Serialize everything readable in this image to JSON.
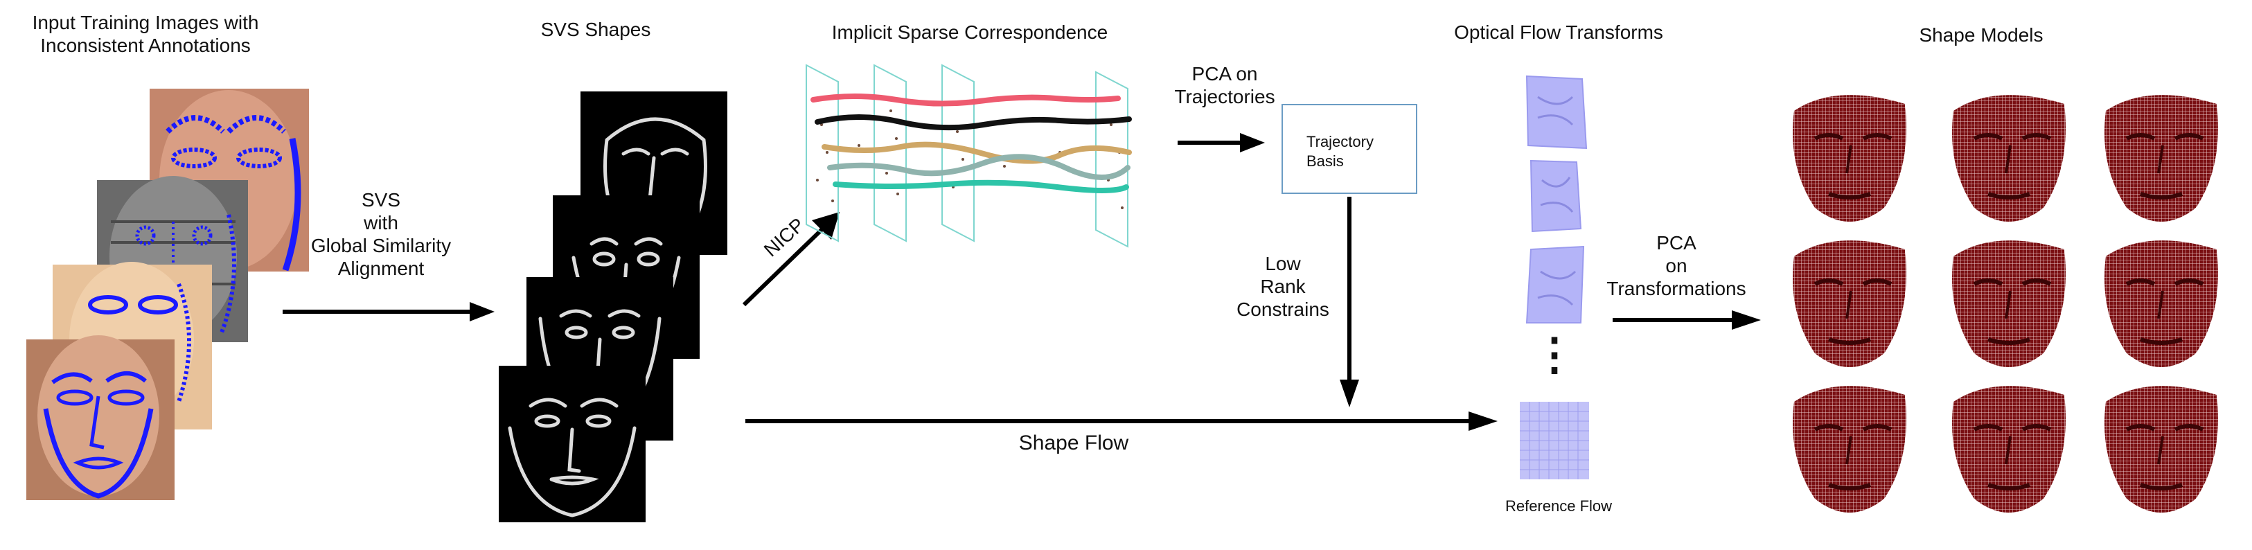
{
  "titles": {
    "input_line1": "Input Training Images with",
    "input_line2": "Inconsistent Annotations",
    "svs_shapes": "SVS Shapes",
    "isc": "Implicit Sparse Correspondence",
    "optical_flow": "Optical Flow Transforms",
    "shape_models": "Shape Models"
  },
  "arrows": {
    "svs_l1": "SVS",
    "svs_l2": "with",
    "svs_l3": "Global Similarity",
    "svs_l4": "Alignment",
    "nicp": "NICP",
    "pca_traj_l1": "PCA on",
    "pca_traj_l2": "Trajectories",
    "low_rank_l1": "Low",
    "low_rank_l2": "Rank",
    "low_rank_l3": "Constrains",
    "shape_flow": "Shape Flow",
    "pca_trans_l1": "PCA",
    "pca_trans_l2": "on",
    "pca_trans_l3": "Transformations"
  },
  "trajectory_box": {
    "line1": "Trajectory",
    "line2": "Basis"
  },
  "reference_flow": "Reference Flow",
  "ellipsis": "⋮",
  "colors": {
    "annotation": "#1a1aff",
    "trajectory_red": "#ee5a6f",
    "trajectory_black": "#111111",
    "trajectory_tan": "#cfa766",
    "trajectory_gray": "#8fb3ad",
    "trajectory_teal": "#2ec4a8",
    "flow_field": "#a8a8f4",
    "shape_model": "#7a0f12",
    "plane": "#7fd6cf",
    "box_border": "#6b9cc4"
  }
}
